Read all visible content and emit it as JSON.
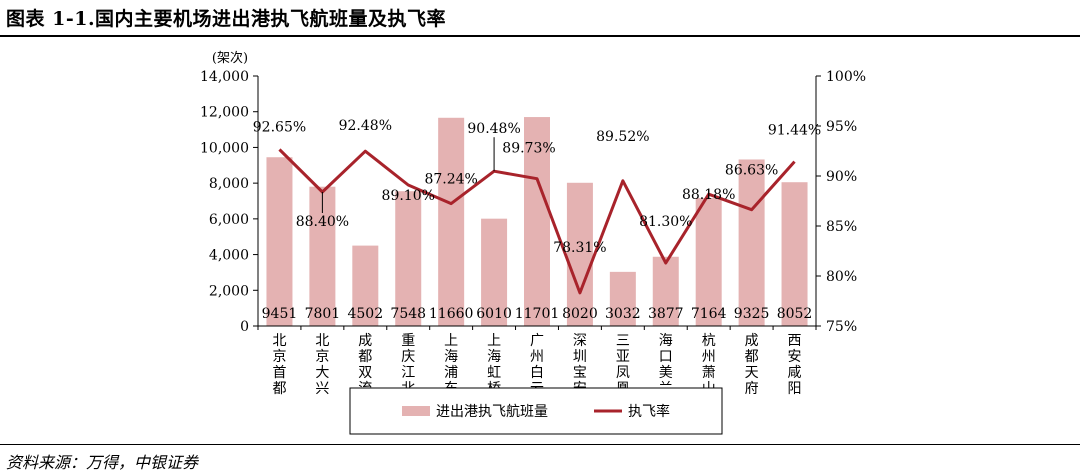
{
  "figure": {
    "title": "图表 1-1.国内主要机场进出港执飞航班量及执飞率",
    "source": "资料来源：万得，中银证券"
  },
  "colors": {
    "bar": "#e4b2b2",
    "line": "#a8232b"
  },
  "chart_data": {
    "type": "bar+line",
    "categories": [
      "北京首都",
      "北京大兴",
      "成都双流",
      "重庆江北",
      "上海浦东",
      "上海虹桥",
      "广州白云",
      "深圳宝安",
      "三亚凤凰",
      "海口美兰",
      "杭州萧山",
      "成都天府",
      "西安咸阳"
    ],
    "series": [
      {
        "name": "进出港执飞航班量",
        "type": "bar",
        "axis": "left",
        "values": [
          9451,
          7801,
          4502,
          7548,
          11660,
          6010,
          11701,
          8020,
          3032,
          3877,
          7164,
          9325,
          8052
        ],
        "labels": [
          "9451",
          "7801",
          "4502",
          "7548",
          "11660",
          "6010",
          "11701",
          "8020",
          "3032",
          "3877",
          "7164",
          "9325",
          "8052"
        ]
      },
      {
        "name": "执飞率",
        "type": "line",
        "axis": "right",
        "values": [
          92.65,
          88.4,
          92.48,
          89.1,
          87.24,
          90.48,
          89.73,
          78.31,
          89.52,
          81.3,
          88.18,
          86.63,
          91.44
        ],
        "labels": [
          "92.65%",
          "88.40%",
          "92.48%",
          "89.10%",
          "87.24%",
          "90.48%",
          "89.73%",
          "78.31%",
          "89.52%",
          "81.30%",
          "88.18%",
          "86.63%",
          "91.44%"
        ]
      }
    ],
    "y_left": {
      "unit": "(架次)",
      "ylim": [
        0,
        14000
      ],
      "ticks": [
        0,
        2000,
        4000,
        6000,
        8000,
        10000,
        12000,
        14000
      ],
      "tick_labels": [
        "0",
        "2,000",
        "4,000",
        "6,000",
        "8,000",
        "10,000",
        "12,000",
        "14,000"
      ]
    },
    "y_right": {
      "ylim": [
        75,
        100
      ],
      "ticks": [
        75,
        80,
        85,
        90,
        95,
        100
      ],
      "tick_labels": [
        "75%",
        "80%",
        "85%",
        "90%",
        "95%",
        "100%"
      ]
    },
    "legend": {
      "position": "bottom"
    },
    "grid": false
  }
}
